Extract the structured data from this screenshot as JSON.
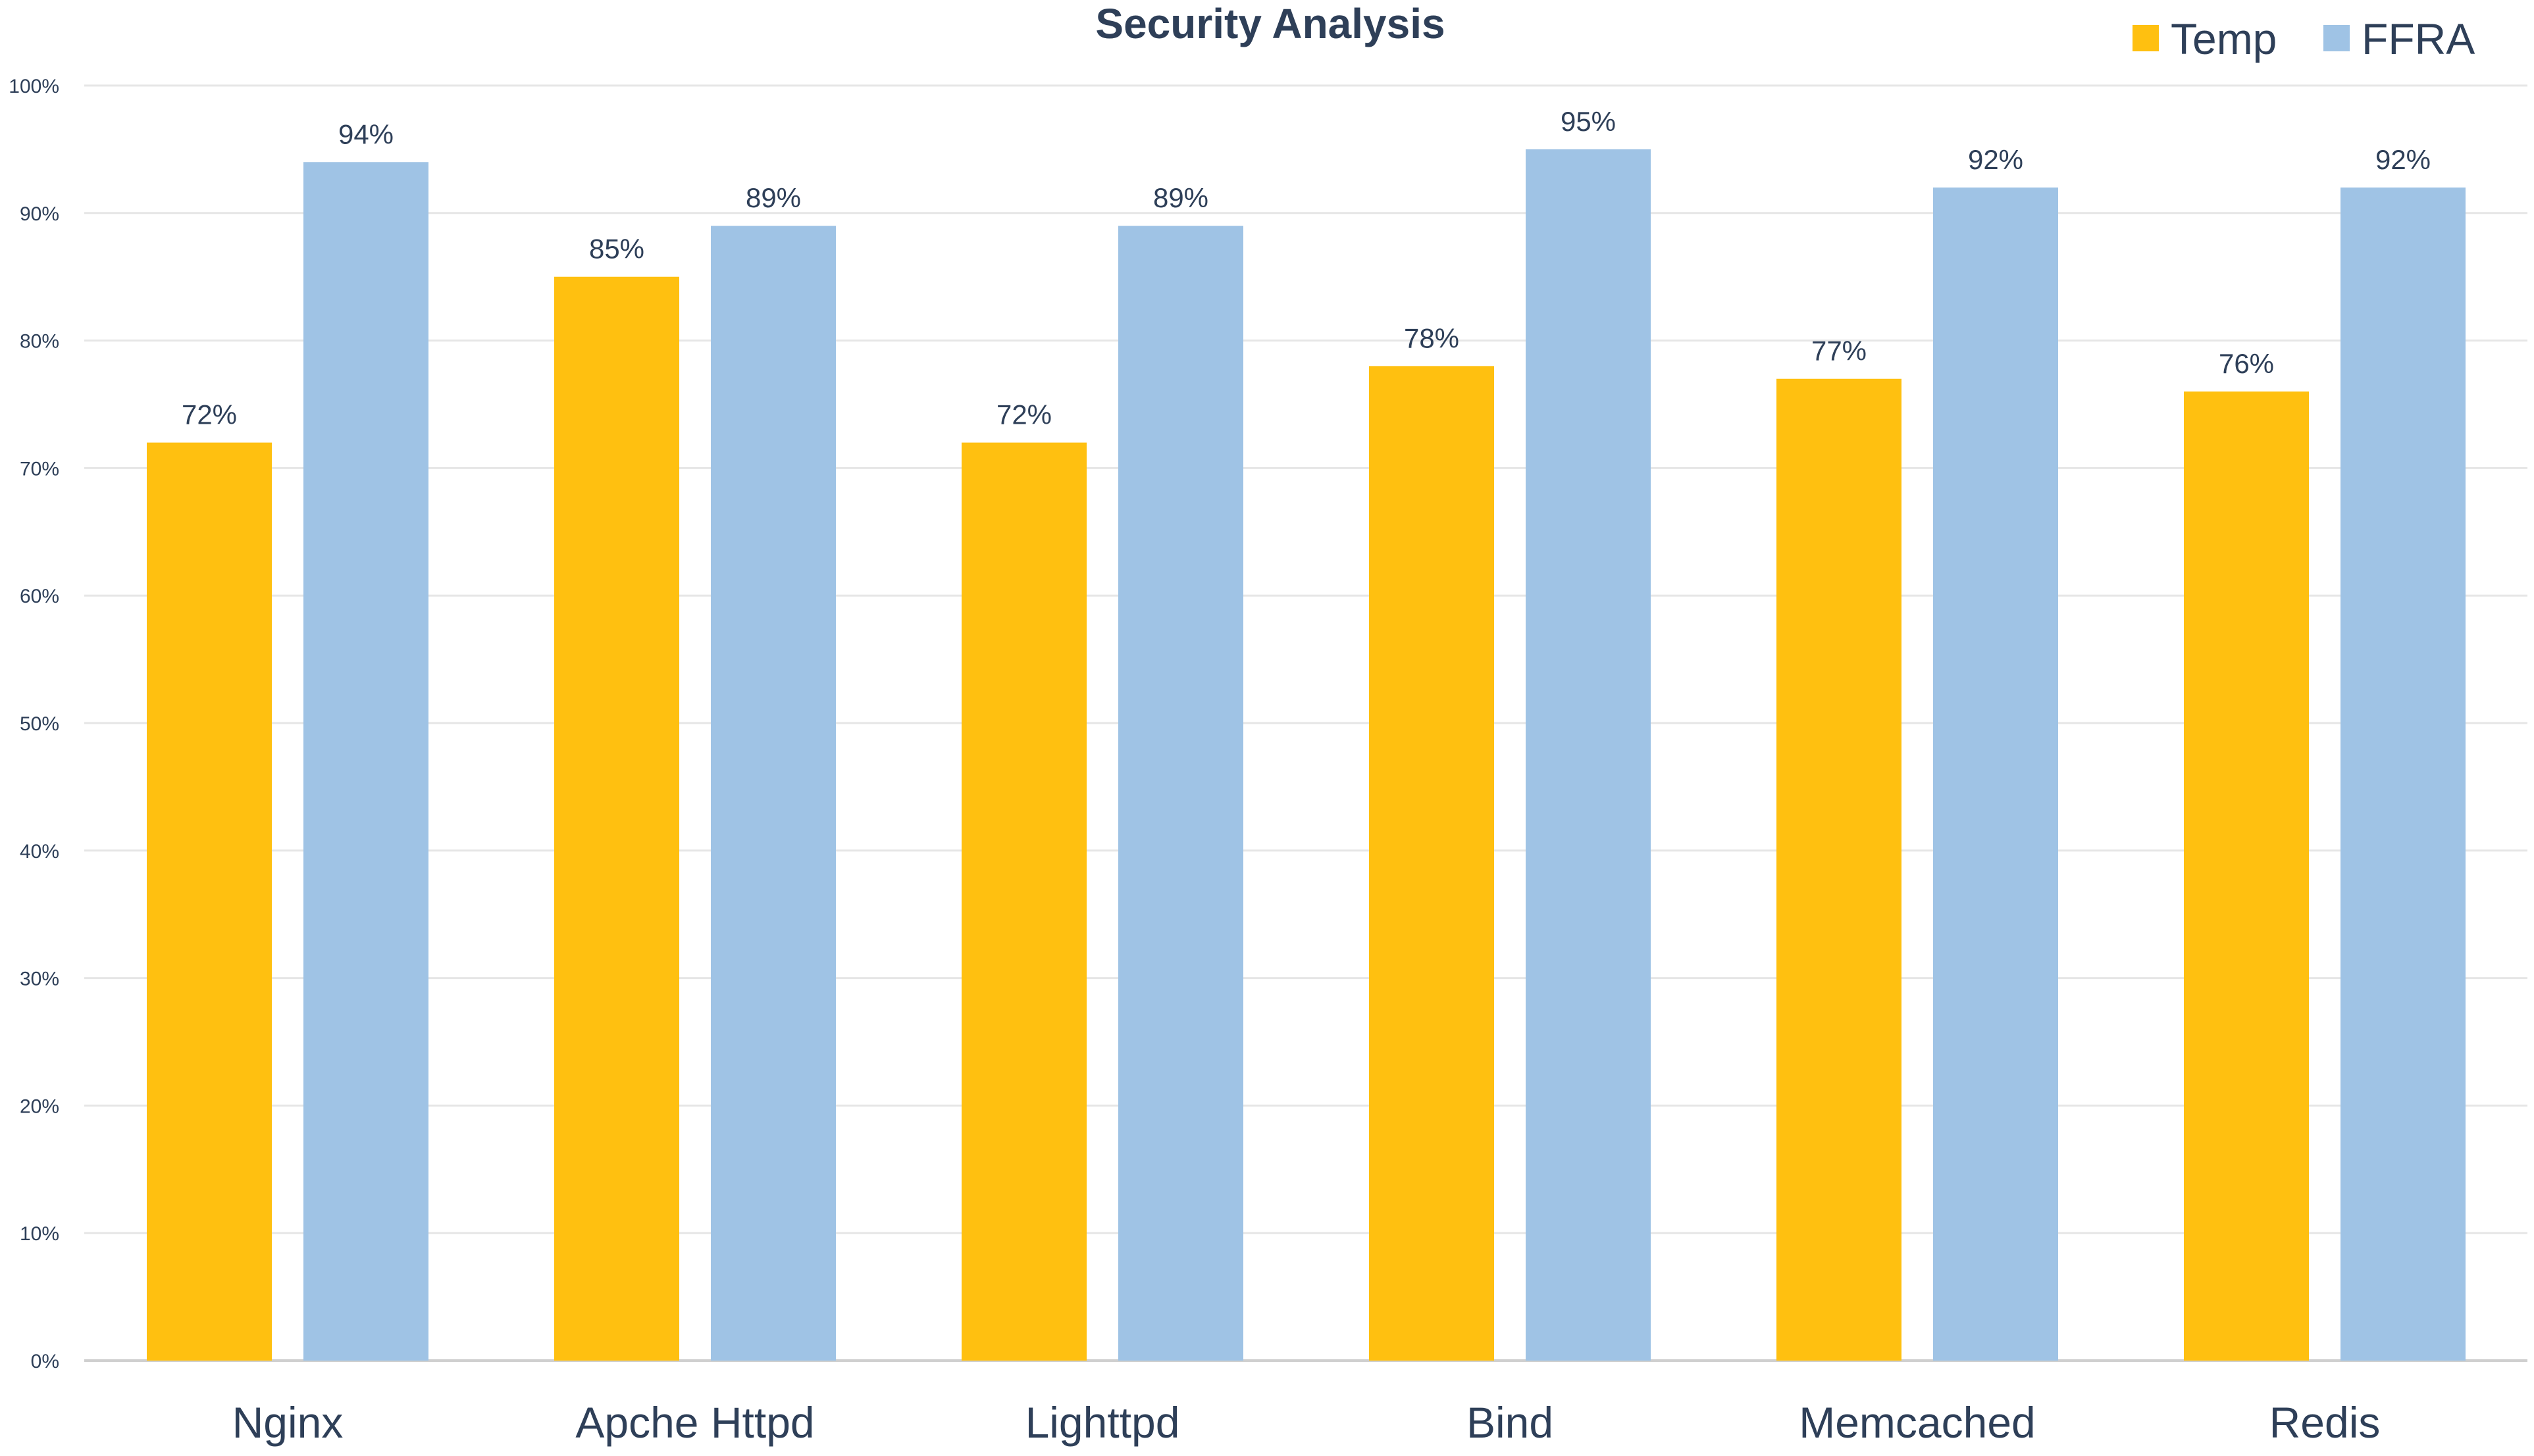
{
  "chart_data": {
    "type": "bar",
    "title": "Security Analysis",
    "xlabel": "",
    "ylabel": "",
    "ylim": [
      0,
      100
    ],
    "yticks": [
      0,
      10,
      20,
      30,
      40,
      50,
      60,
      70,
      80,
      90,
      100
    ],
    "ytick_labels": [
      "0%",
      "10%",
      "20%",
      "30%",
      "40%",
      "50%",
      "60%",
      "70%",
      "80%",
      "90%",
      "100%"
    ],
    "categories": [
      "Nginx",
      "Apche Httpd",
      "Lighttpd",
      "Bind",
      "Memcached",
      "Redis"
    ],
    "series": [
      {
        "name": "Temp",
        "color": "#ffc010",
        "values": [
          72,
          85,
          72,
          78,
          77,
          76
        ],
        "labels": [
          "72%",
          "85%",
          "72%",
          "78%",
          "77%",
          "76%"
        ]
      },
      {
        "name": "FFRA",
        "color": "#9fc3e5",
        "values": [
          94,
          89,
          89,
          95,
          92,
          92
        ],
        "labels": [
          "94%",
          "89%",
          "89%",
          "95%",
          "92%",
          "92%"
        ]
      }
    ],
    "legend_position": "top-right",
    "grid": true
  },
  "colors": {
    "text": "#2e3f58",
    "grid": "#e6e6e6"
  }
}
